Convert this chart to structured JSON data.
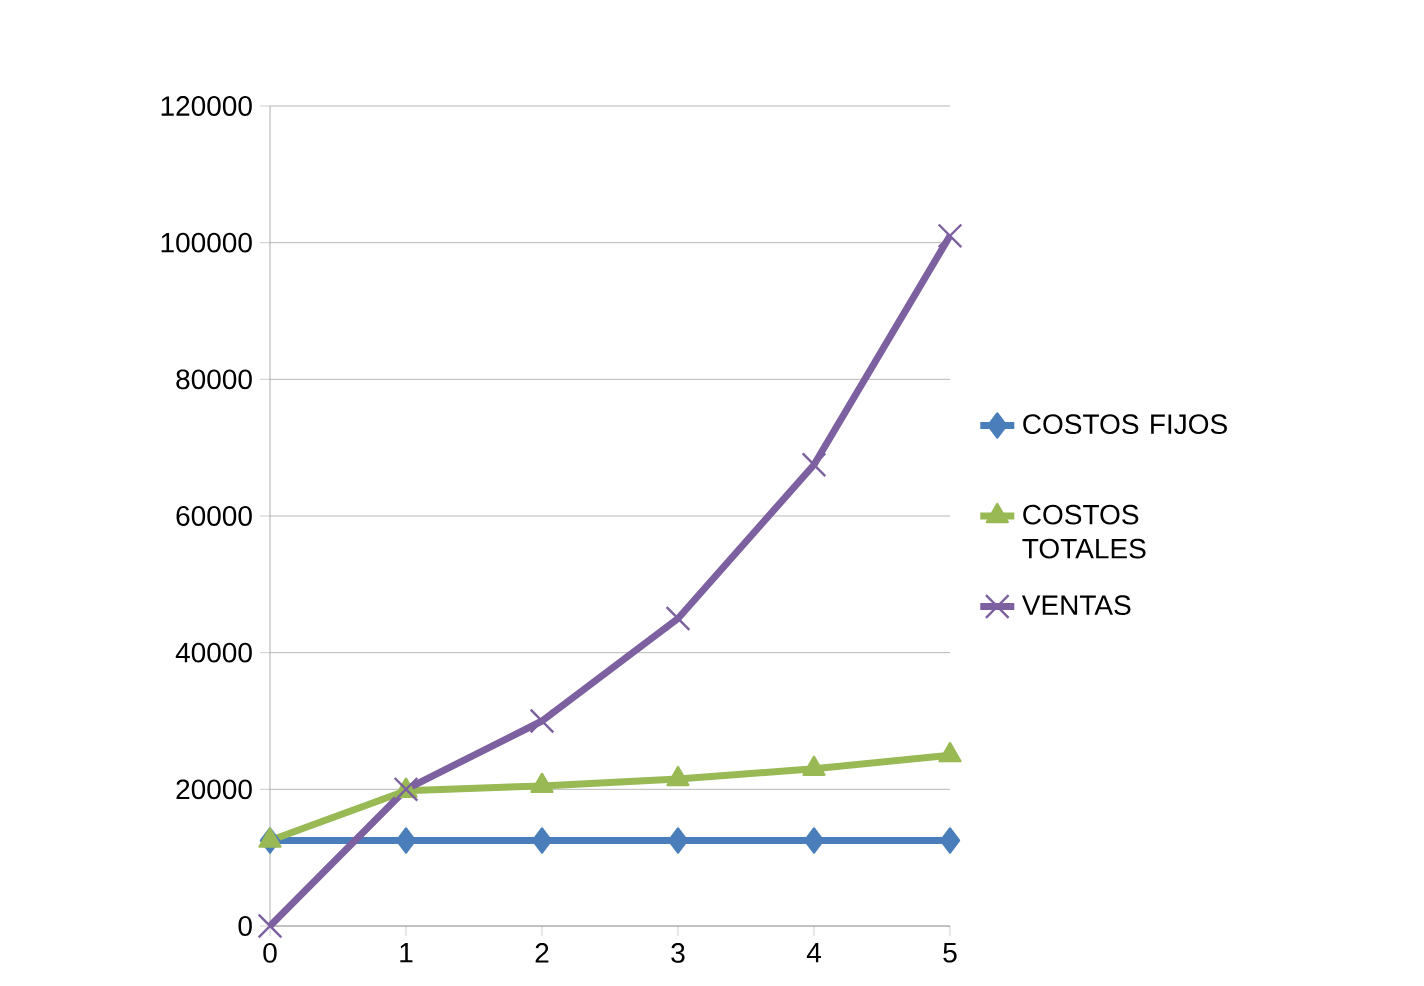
{
  "chart_data": {
    "type": "line",
    "categories": [
      "0",
      "1",
      "2",
      "3",
      "4",
      "5"
    ],
    "series": [
      {
        "name": "COSTOS FIJOS",
        "color": "#4a7ebb",
        "marker": "diamond",
        "values": [
          12500,
          12500,
          12500,
          12500,
          12500,
          12500
        ]
      },
      {
        "name": "COSTOS TOTALES",
        "color": "#98b954",
        "marker": "triangle",
        "values": [
          12500,
          19800,
          20500,
          21500,
          23000,
          25000
        ]
      },
      {
        "name": "VENTAS",
        "color": "#7d60a0",
        "marker": "cross",
        "values": [
          0,
          20000,
          30000,
          45000,
          67500,
          101000
        ]
      }
    ],
    "ylim": [
      0,
      120000
    ],
    "yticks": [
      0,
      20000,
      40000,
      60000,
      80000,
      100000,
      120000
    ],
    "grid": "y",
    "legend": "right",
    "line_style": "solid"
  }
}
